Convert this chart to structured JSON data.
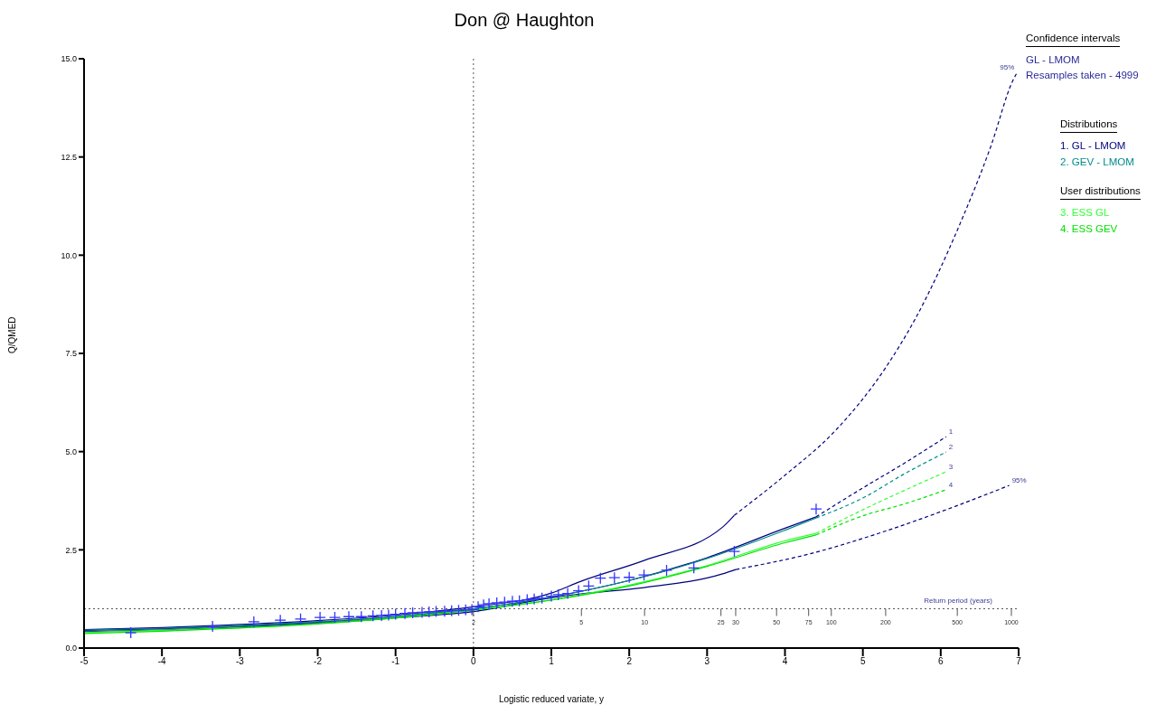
{
  "chart_data": {
    "type": "line",
    "title": "Don @ Haughton",
    "xlabel": "Logistic reduced variate, y",
    "ylabel": "Q/QMED",
    "xlim": [
      -5,
      7
    ],
    "xticks": [
      -5,
      -4,
      -3,
      -2,
      -1,
      0,
      1,
      2,
      3,
      4,
      5,
      6,
      7
    ],
    "ylim": [
      0,
      15
    ],
    "yticks": [
      {
        "value": 0,
        "label": "0.0"
      },
      2.5,
      {
        "value": 5,
        "label": "5.0"
      },
      7.5,
      {
        "value": 10,
        "label": "10.0"
      },
      12.5,
      {
        "value": 15,
        "label": "15.0"
      }
    ],
    "ref_lines": [
      {
        "axis": "x",
        "value": 0,
        "color": "#555555",
        "line_style": "dotted"
      },
      {
        "axis": "y",
        "value": 1,
        "color": "#555555",
        "line_style": "dotted"
      }
    ],
    "legend": "right",
    "legend_title": "Distributions",
    "annotations": [
      "Confidence intervals",
      "GL - LMOM",
      "Resamples taken - 4999",
      "User distributions",
      {
        "text": "1",
        "x": 6.07,
        "y": 5.38
      },
      {
        "text": "2",
        "x": 6.07,
        "y": 4.99
      },
      {
        "text": "3",
        "x": 6.07,
        "y": 4.49
      },
      {
        "text": "4",
        "x": 6.07,
        "y": 4.03
      },
      {
        "text": "95%",
        "x": 6.98,
        "y": 14.65
      },
      {
        "text": "95%",
        "x": 6.88,
        "y": 4.14
      },
      {
        "text": "Return period (years)",
        "x": 5.75,
        "y": 1.07
      },
      {
        "text": "2",
        "x": 0,
        "y": 1
      },
      {
        "text": "5",
        "x": 1.386,
        "y": 1
      },
      {
        "text": "10",
        "x": 2.197,
        "y": 1
      },
      {
        "text": "25",
        "x": 3.178,
        "y": 1
      },
      {
        "text": "30",
        "x": 3.367,
        "y": 1
      },
      {
        "text": "50",
        "x": 3.892,
        "y": 1
      },
      {
        "text": "75",
        "x": 4.304,
        "y": 1
      },
      {
        "text": "100",
        "x": 4.595,
        "y": 1
      },
      {
        "text": "200",
        "x": 5.293,
        "y": 1
      },
      {
        "text": "500",
        "x": 6.213,
        "y": 1
      },
      {
        "text": "1000",
        "x": 6.907,
        "y": 1
      }
    ],
    "series": [
      {
        "color": "#000080",
        "line_style": "solid",
        "x": [
          -5,
          -4,
          -3,
          -2,
          -1,
          0,
          1,
          1.38,
          2.19,
          3.2,
          3.35
        ],
        "values": [
          0.47,
          0.52,
          0.6,
          0.7,
          0.84,
          1.05,
          1.4,
          1.7,
          2.23,
          3.08,
          3.38
        ]
      },
      {
        "color": "#000080",
        "line_style": "dashed",
        "x": [
          3.35,
          4.0,
          4.63,
          5.29,
          5.67,
          6.25,
          6.65,
          6.92,
          6.98
        ],
        "values": [
          3.38,
          4.4,
          5.5,
          7.13,
          8.37,
          10.81,
          12.81,
          14.42,
          14.65
        ]
      },
      {
        "color": "#000080",
        "line_style": "solid",
        "x": [
          -5,
          -4,
          -3,
          -2,
          -1,
          0,
          1,
          1.38,
          2.19,
          3.2,
          3.37
        ],
        "values": [
          0.42,
          0.46,
          0.53,
          0.63,
          0.77,
          0.93,
          1.28,
          1.38,
          1.54,
          1.89,
          2.0
        ]
      },
      {
        "color": "#000080",
        "line_style": "dashed",
        "x": [
          3.37,
          4.36,
          5.14,
          6.19,
          6.88
        ],
        "values": [
          2.0,
          2.42,
          2.88,
          3.61,
          4.14
        ]
      },
      {
        "name": "1. GL - LMOM",
        "color": "#000080",
        "line_style": "solid",
        "x": [
          -5,
          -4,
          -3,
          -2,
          -1,
          0,
          1,
          2,
          3,
          4,
          4.4
        ],
        "values": [
          0.45,
          0.49,
          0.56,
          0.66,
          0.8,
          1.0,
          1.3,
          1.72,
          2.3,
          3.05,
          3.34
        ]
      },
      {
        "color": "#000080",
        "line_style": "dashed",
        "x": [
          4.4,
          5.02,
          5.52,
          6.07
        ],
        "values": [
          3.34,
          4.1,
          4.69,
          5.38
        ]
      },
      {
        "name": "2. GEV - LMOM",
        "color": "#008b8b",
        "line_style": "solid",
        "x": [
          -5,
          -4,
          -3,
          -2,
          -1,
          0,
          1,
          2,
          3,
          4,
          4.4
        ],
        "values": [
          0.46,
          0.5,
          0.57,
          0.67,
          0.8,
          1.0,
          1.3,
          1.72,
          2.28,
          3.0,
          3.31
        ]
      },
      {
        "color": "#008b8b",
        "line_style": "dashed",
        "x": [
          4.4,
          5.02,
          5.52,
          6.07
        ],
        "values": [
          3.31,
          3.84,
          4.42,
          4.99
        ]
      },
      {
        "name": "3. ESS GL",
        "color": "#33ff33",
        "line_style": "solid",
        "x": [
          -5,
          -4,
          -3,
          -2,
          -1,
          0,
          1,
          2,
          3,
          4,
          4.4
        ],
        "values": [
          0.4,
          0.45,
          0.52,
          0.62,
          0.77,
          0.97,
          1.23,
          1.6,
          2.1,
          2.73,
          2.92
        ]
      },
      {
        "color": "#33ff33",
        "line_style": "dashed",
        "x": [
          4.4,
          5.02,
          5.52,
          6.07
        ],
        "values": [
          2.92,
          3.54,
          4.0,
          4.49
        ]
      },
      {
        "name": "4. ESS GEV",
        "color": "#00e000",
        "line_style": "solid",
        "x": [
          -5,
          -4,
          -3,
          -2,
          -1,
          0,
          1,
          2,
          3,
          4,
          4.4
        ],
        "values": [
          0.37,
          0.43,
          0.51,
          0.62,
          0.77,
          0.97,
          1.22,
          1.58,
          2.08,
          2.68,
          2.88
        ]
      },
      {
        "color": "#00e000",
        "line_style": "dashed",
        "x": [
          4.4,
          5.02,
          5.52,
          6.07
        ],
        "values": [
          2.88,
          3.38,
          3.66,
          4.03
        ]
      },
      {
        "type": "scatter",
        "color": "#3333ff",
        "marker": "cross",
        "x": [
          -4.4,
          -3.35,
          -2.82,
          -2.48,
          -2.22,
          -1.97,
          -1.78,
          -1.6,
          -1.44,
          -1.29,
          -1.18,
          -1.09,
          -1.0,
          -0.88,
          -0.78,
          -0.66,
          -0.57,
          -0.48,
          -0.37,
          -0.28,
          -0.19,
          -0.1,
          -0.02,
          0.06,
          0.13,
          0.2,
          0.3,
          0.4,
          0.5,
          0.59,
          0.69,
          0.78,
          0.88,
          1.0,
          1.09,
          1.21,
          1.35,
          1.48,
          1.63,
          1.81,
          2.0,
          2.19,
          2.48,
          2.83,
          3.35,
          4.4
        ],
        "values": [
          0.39,
          0.55,
          0.67,
          0.71,
          0.74,
          0.78,
          0.78,
          0.8,
          0.8,
          0.82,
          0.83,
          0.84,
          0.86,
          0.88,
          0.9,
          0.91,
          0.92,
          0.93,
          0.94,
          0.95,
          0.96,
          0.97,
          0.98,
          1.05,
          1.1,
          1.13,
          1.15,
          1.17,
          1.19,
          1.2,
          1.23,
          1.25,
          1.27,
          1.32,
          1.36,
          1.39,
          1.46,
          1.58,
          1.78,
          1.79,
          1.8,
          1.86,
          1.98,
          2.04,
          2.46,
          3.54
        ]
      }
    ]
  }
}
